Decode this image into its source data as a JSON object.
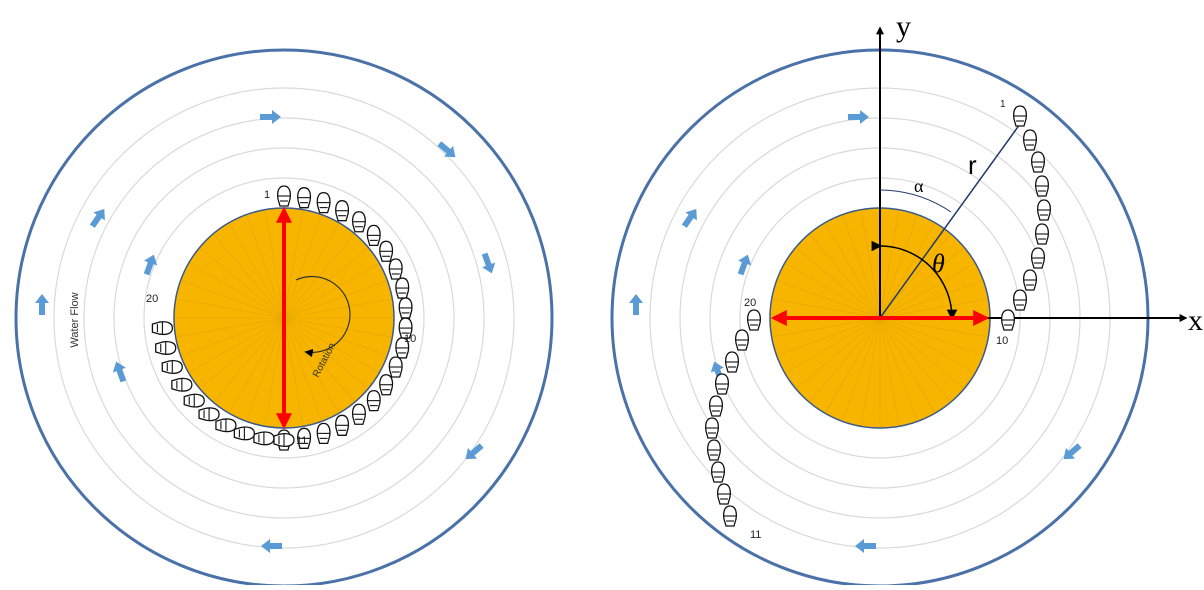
{
  "left_panel": {
    "label_water_flow": "Water Flow",
    "label_rotation": "Rotation",
    "label_first": "1",
    "label_tenth": "10",
    "label_eleventh": "11",
    "label_twentieth": "20"
  },
  "right_panel": {
    "label_first": "1",
    "label_tenth": "10",
    "label_eleventh": "11",
    "label_twentieth": "20",
    "axis_x": "x",
    "axis_y": "y",
    "label_radius": "r",
    "label_alpha": "α",
    "label_theta": "θ"
  },
  "colors": {
    "tank_outline": "#4a72a8",
    "ring": "#d9d9d9",
    "core_fill": "#f7b500",
    "core_outline": "#3a5a8a",
    "flow_arrow": "#5b9bd5",
    "red_arrow": "#ff0000",
    "axis": "#000000",
    "radius_line": "#1f3a6a"
  },
  "icons": {
    "boat": "fish-shaped-boat-icon",
    "flow": "flow-arrow-icon"
  }
}
